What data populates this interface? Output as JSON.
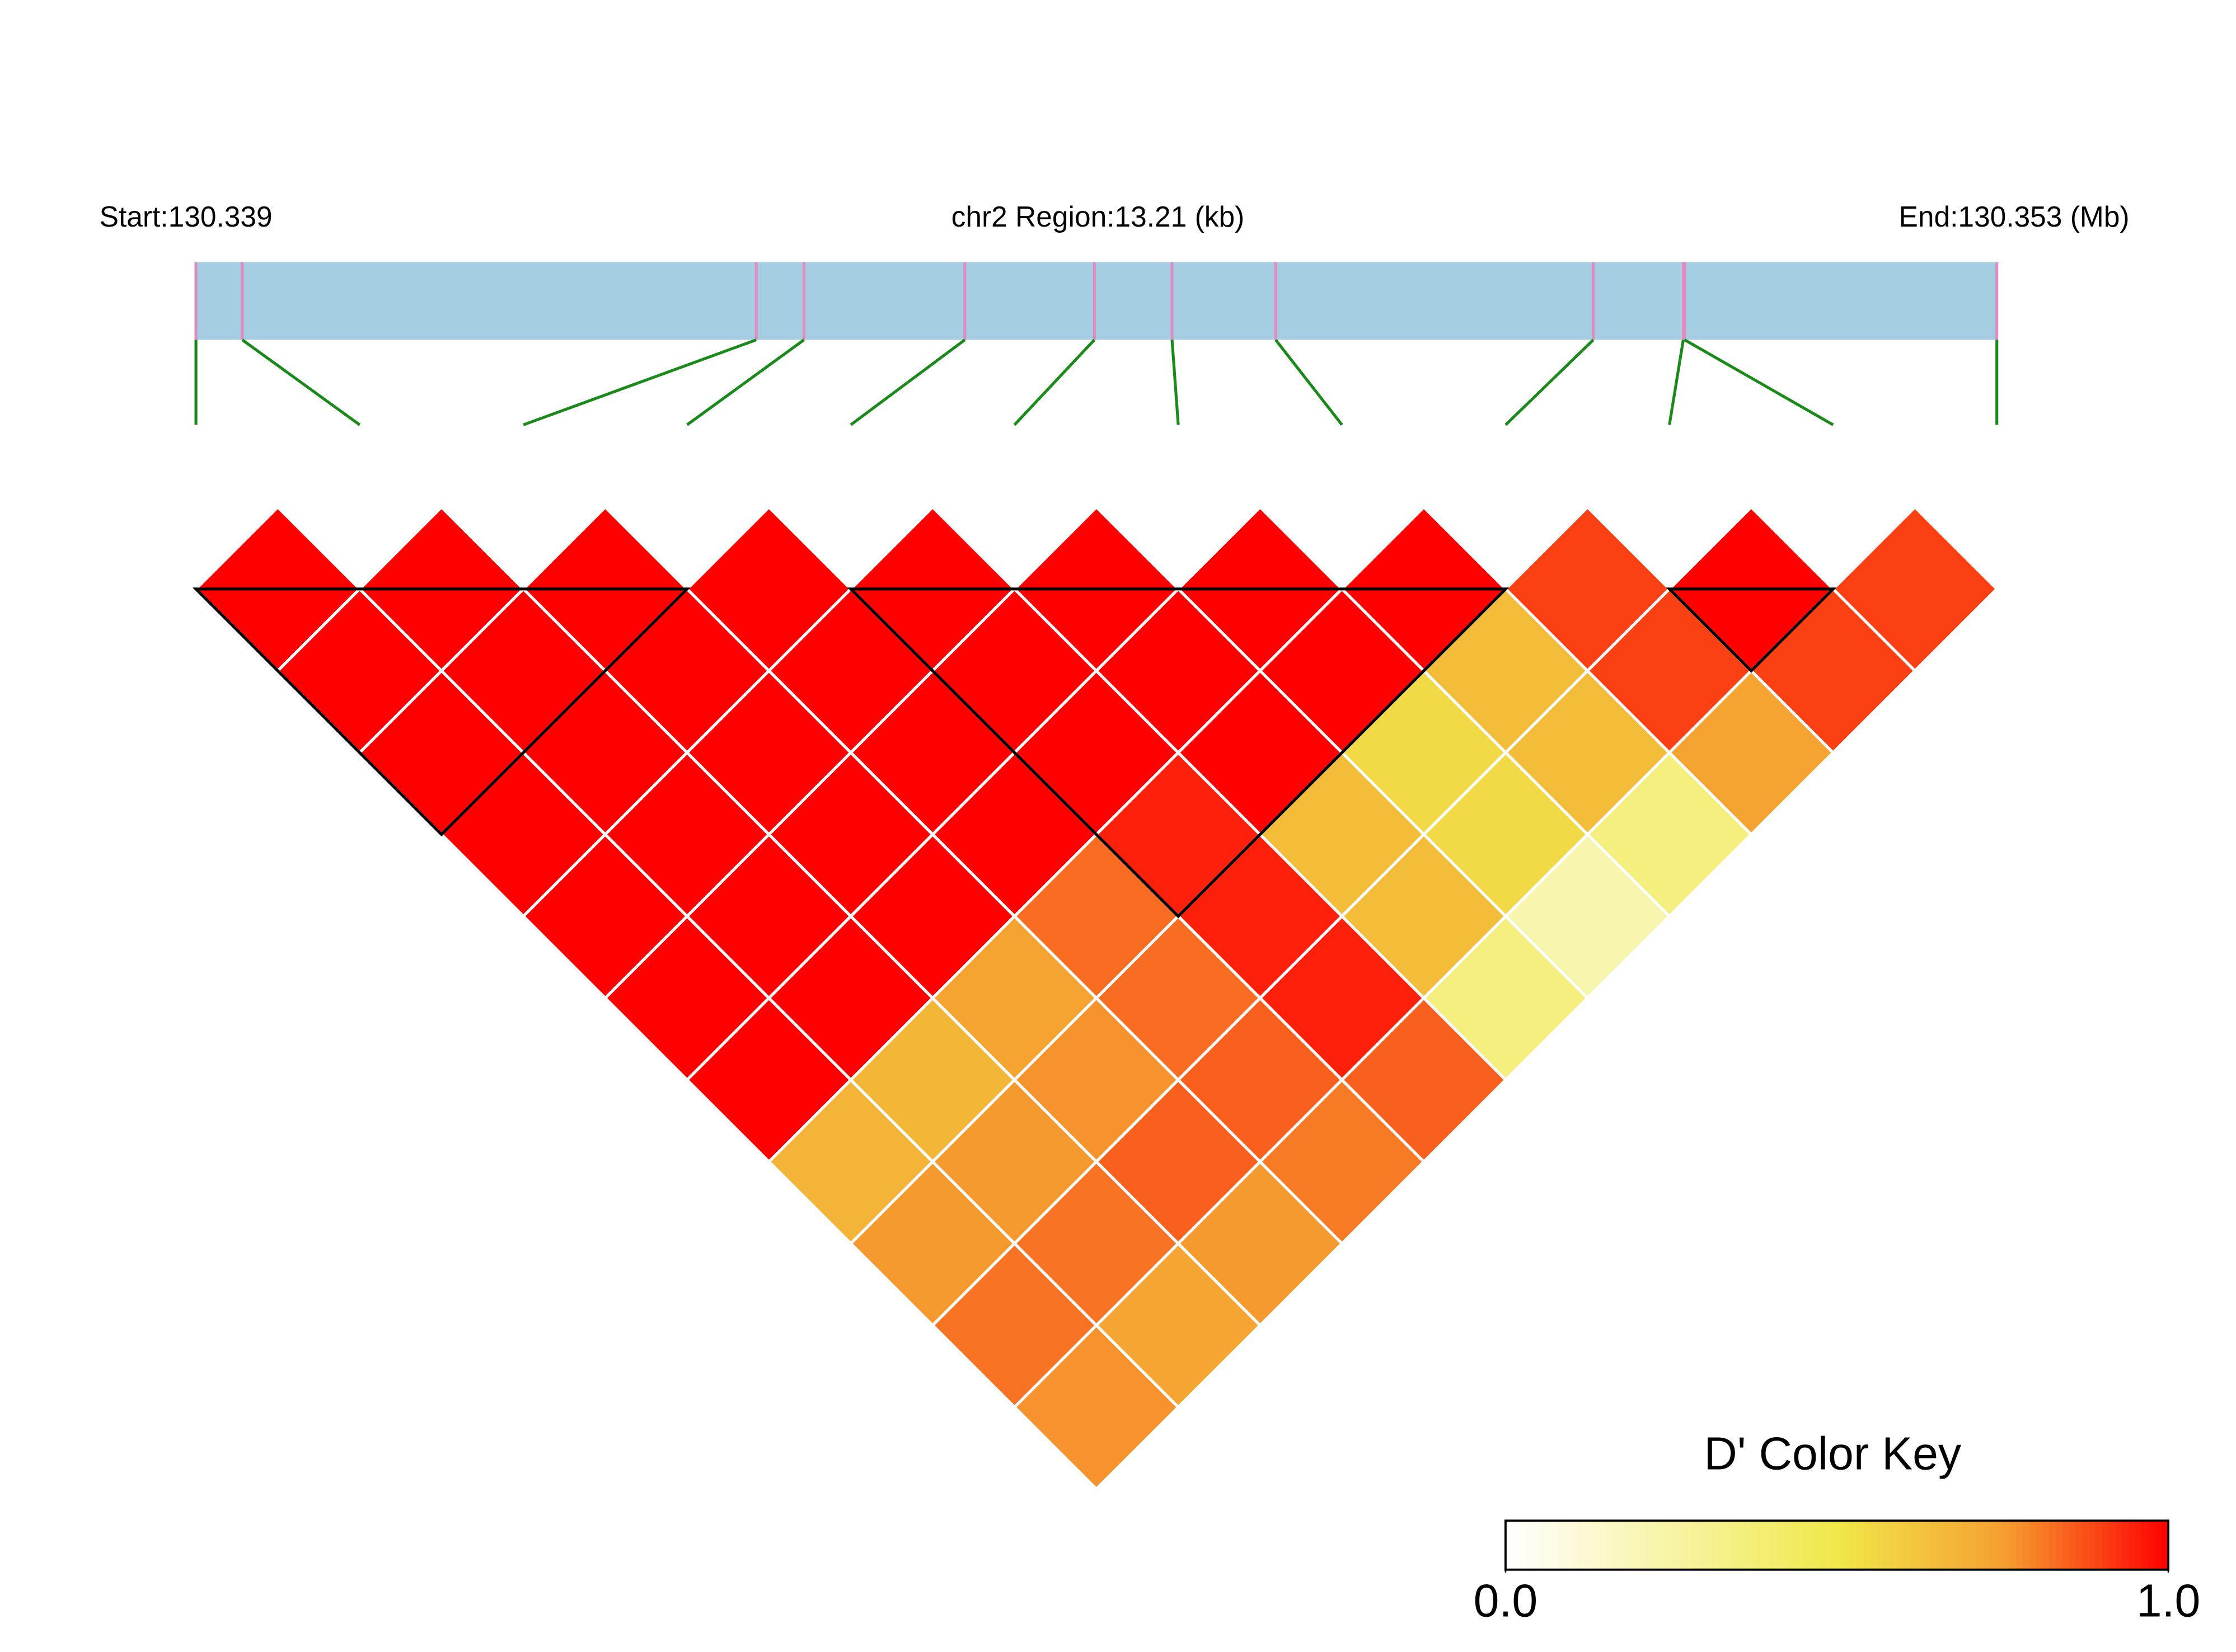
{
  "chart_data": {
    "type": "ld_heatmap",
    "start_label": "Start:130.339",
    "region_label": "chr2 Region:13.21 (kb)",
    "end_label": "End:130.353 (Mb)",
    "xlim": [
      0,
      13.21
    ],
    "snp_positions_kb": [
      0,
      0.34,
      4.11,
      4.46,
      5.64,
      6.59,
      7.16,
      7.92,
      10.25,
      10.91,
      10.92,
      13.21
    ],
    "values": [
      [
        1,
        1,
        1,
        1,
        1,
        1,
        1,
        0.68,
        0.76,
        0.82,
        0.77
      ],
      [
        1,
        1,
        1,
        1,
        1,
        1,
        0.67,
        0.76,
        0.82,
        0.73
      ],
      [
        1,
        1,
        1,
        1,
        1,
        0.74,
        0.77,
        0.85,
        0.76
      ],
      [
        1,
        1,
        1,
        1,
        0.83,
        0.83,
        0.85,
        0.81
      ],
      [
        1,
        1,
        1,
        0.95,
        0.95,
        0.95,
        0.85
      ],
      [
        1,
        1,
        1,
        0.65,
        0.65,
        0.35
      ],
      [
        1,
        1,
        0.55,
        0.55,
        0.22
      ],
      [
        1,
        0.65,
        0.65,
        0.35
      ],
      [
        0.9,
        0.9,
        0.74
      ],
      [
        1,
        0.9
      ],
      [
        0.9
      ]
    ],
    "blocks": [
      [
        0,
        3
      ],
      [
        4,
        8
      ],
      [
        9,
        10
      ]
    ],
    "color_stops": [
      {
        "value": 0,
        "color": "#ffffff"
      },
      {
        "value": 0.5,
        "color": "#f0e84a"
      },
      {
        "value": 0.75,
        "color": "#f5a030"
      },
      {
        "value": 1,
        "color": "#ff0000"
      }
    ],
    "key_title": "D' Color Key",
    "key_ticks": [
      {
        "value": 0,
        "label": "0.0"
      },
      {
        "value": 1,
        "label": "1.0"
      }
    ],
    "bar_color": "#a6cee3",
    "snp_tick_color": "#e08cc0",
    "connector_color": "#1a8a1a"
  }
}
